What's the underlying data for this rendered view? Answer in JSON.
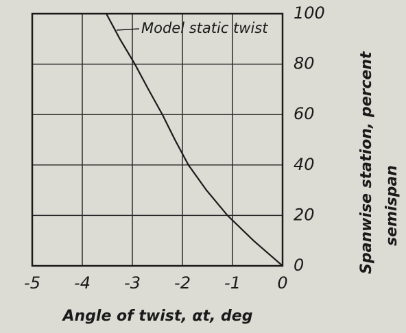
{
  "chart_data": {
    "type": "line",
    "x_label": "Angle of twist, αt, deg",
    "y_label": "Spanwise station, percent",
    "y_label_2": "semispan",
    "x": [
      0,
      -0.58,
      -1.1,
      -1.52,
      -1.88,
      -2.15,
      -2.4,
      -2.68,
      -2.95,
      -3.25,
      -3.52
    ],
    "series": [
      {
        "name": "Model static twist",
        "color": "#1a1a1a",
        "values": [
          0,
          10,
          20,
          30,
          40,
          50,
          60,
          70,
          80,
          90,
          100
        ]
      }
    ],
    "xlim": [
      -5,
      0
    ],
    "xticks": [
      -5,
      -4,
      -3,
      -2,
      -1,
      0
    ],
    "ylim": [
      0,
      100
    ],
    "yticks": [
      0,
      20,
      40,
      60,
      80,
      100
    ],
    "grid": true
  }
}
